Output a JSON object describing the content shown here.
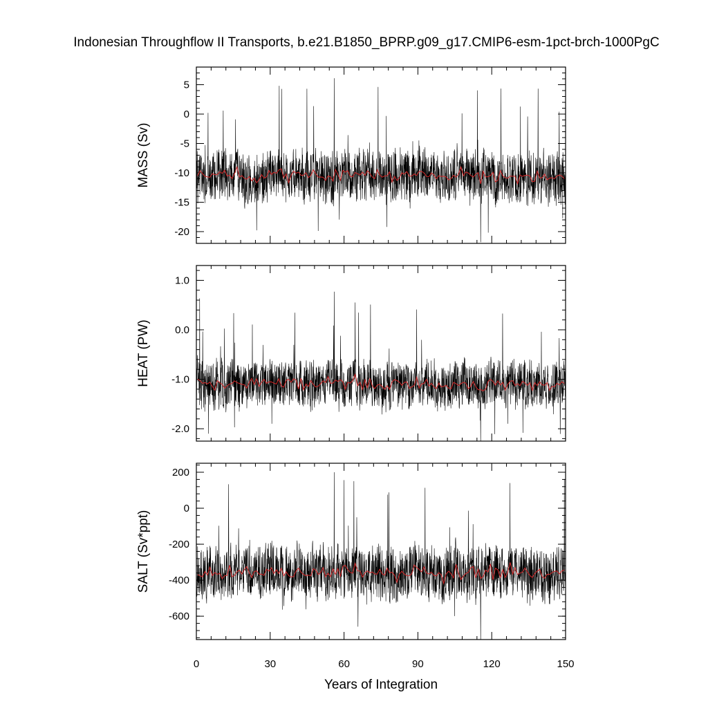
{
  "chart_data": {
    "type": "line",
    "title": "Indonesian Throughflow II Transports, b.e21.B1850_BPRP.g09_g17.CMIP6-esm-1pct-brch-1000PgC",
    "xlabel": "Years of Integration",
    "x_ticks": [
      "0",
      "30",
      "60",
      "90",
      "120",
      "150"
    ],
    "xlim": [
      0,
      150
    ],
    "series_colors": {
      "monthly": "#000000",
      "annual": "#d62728"
    },
    "panels": [
      {
        "ylabel": "MASS (Sv)",
        "ylim": [
          -22,
          8
        ],
        "y_ticks": [
          "5",
          "0",
          "-5",
          "-10",
          "-15",
          "-20"
        ],
        "y_tick_values": [
          5,
          0,
          -5,
          -10,
          -15,
          -20
        ],
        "mean": -10.5,
        "max": 6.1,
        "min": -21.8,
        "annual_mean_range": [
          -12.0,
          -9.0
        ]
      },
      {
        "ylabel": "HEAT (PW)",
        "ylim": [
          -2.25,
          1.3
        ],
        "y_ticks": [
          "1.0",
          "0.0",
          "-1.0",
          "-2.0"
        ],
        "y_tick_values": [
          1.0,
          0.0,
          -1.0,
          -2.0
        ],
        "mean": -1.1,
        "max": 0.77,
        "min": -2.25,
        "annual_mean_range": [
          -1.3,
          -0.9
        ]
      },
      {
        "ylabel": "SALT (Sv*ppt)",
        "ylim": [
          -730,
          250
        ],
        "y_ticks": [
          "200",
          "0",
          "-200",
          "-400",
          "-600"
        ],
        "y_tick_values": [
          200,
          0,
          -200,
          -400,
          -600
        ],
        "mean": -360,
        "max": 200,
        "min": -730,
        "annual_mean_range": [
          -420,
          -300
        ]
      }
    ]
  }
}
